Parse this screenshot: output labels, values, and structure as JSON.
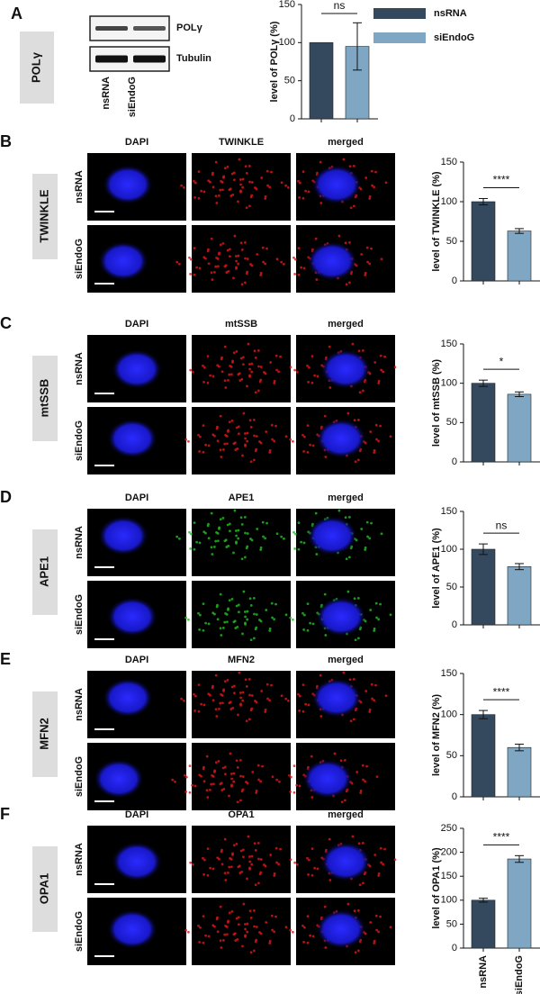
{
  "legend": [
    {
      "name": "nsRNA",
      "color": "#34495e"
    },
    {
      "name": "siEndoG",
      "color": "#7fa7c3"
    }
  ],
  "blot": {
    "letter": "A",
    "protein": "POLγ",
    "bands": [
      "POLγ",
      "Tubulin"
    ],
    "lanes": [
      "nsRNA",
      "siEndoG"
    ]
  },
  "panels": [
    {
      "letter": "B",
      "protein": "TWINKLE",
      "columns": [
        "DAPI",
        "TWINKLE",
        "merged"
      ],
      "rows": [
        "nsRNA",
        "siEndoG"
      ],
      "color": "#e01818"
    },
    {
      "letter": "C",
      "protein": "mtSSB",
      "columns": [
        "DAPI",
        "mtSSB",
        "merged"
      ],
      "rows": [
        "nsRNA",
        "siEndoG"
      ],
      "color": "#e01818"
    },
    {
      "letter": "D",
      "protein": "APE1",
      "columns": [
        "DAPI",
        "APE1",
        "merged"
      ],
      "rows": [
        "nsRNA",
        "siEndoG"
      ],
      "color": "#20c020"
    },
    {
      "letter": "E",
      "protein": "MFN2",
      "columns": [
        "DAPI",
        "MFN2",
        "merged"
      ],
      "rows": [
        "nsRNA",
        "siEndoG"
      ],
      "color": "#e01818"
    },
    {
      "letter": "F",
      "protein": "OPA1",
      "columns": [
        "DAPI",
        "OPA1",
        "merged"
      ],
      "rows": [
        "nsRNA",
        "siEndoG"
      ],
      "color": "#e01818"
    }
  ],
  "chart_data": [
    {
      "type": "bar",
      "ylabel": "level of POLγ (%)",
      "categories": [
        null,
        null
      ],
      "values": [
        100,
        95
      ],
      "errors": [
        null,
        31
      ],
      "colors": [
        "#34495e",
        "#7fa7c3"
      ],
      "ylim": [
        0,
        150
      ],
      "yticks": [
        0,
        50,
        100,
        150
      ],
      "significance": "ns"
    },
    {
      "type": "bar",
      "ylabel": "level of TWINKLE (%)",
      "categories": [
        null,
        null
      ],
      "values": [
        100,
        63
      ],
      "errors": [
        4,
        3
      ],
      "colors": [
        "#34495e",
        "#7fa7c3"
      ],
      "ylim": [
        0,
        150
      ],
      "yticks": [
        0,
        50,
        100,
        150
      ],
      "significance": "****"
    },
    {
      "type": "bar",
      "ylabel": "level of mtSSB (%)",
      "categories": [
        null,
        null
      ],
      "values": [
        100,
        86
      ],
      "errors": [
        4,
        3
      ],
      "colors": [
        "#34495e",
        "#7fa7c3"
      ],
      "ylim": [
        0,
        150
      ],
      "yticks": [
        0,
        50,
        100,
        150
      ],
      "significance": "*"
    },
    {
      "type": "bar",
      "ylabel": "level of APE1 (%)",
      "categories": [
        null,
        null
      ],
      "values": [
        100,
        77
      ],
      "errors": [
        7,
        4
      ],
      "colors": [
        "#34495e",
        "#7fa7c3"
      ],
      "ylim": [
        0,
        150
      ],
      "yticks": [
        0,
        50,
        100,
        150
      ],
      "significance": "ns"
    },
    {
      "type": "bar",
      "ylabel": "level of MFN2 (%)",
      "categories": [
        null,
        null
      ],
      "values": [
        100,
        60
      ],
      "errors": [
        5,
        4
      ],
      "colors": [
        "#34495e",
        "#7fa7c3"
      ],
      "ylim": [
        0,
        150
      ],
      "yticks": [
        0,
        50,
        100,
        150
      ],
      "significance": "****"
    },
    {
      "type": "bar",
      "ylabel": "level of OPA1 (%)",
      "categories": [
        "nsRNA",
        "siEndoG"
      ],
      "values": [
        100,
        186
      ],
      "errors": [
        4,
        7
      ],
      "colors": [
        "#34495e",
        "#7fa7c3"
      ],
      "ylim": [
        0,
        250
      ],
      "yticks": [
        0,
        50,
        100,
        150,
        200,
        250
      ],
      "significance": "****"
    }
  ]
}
